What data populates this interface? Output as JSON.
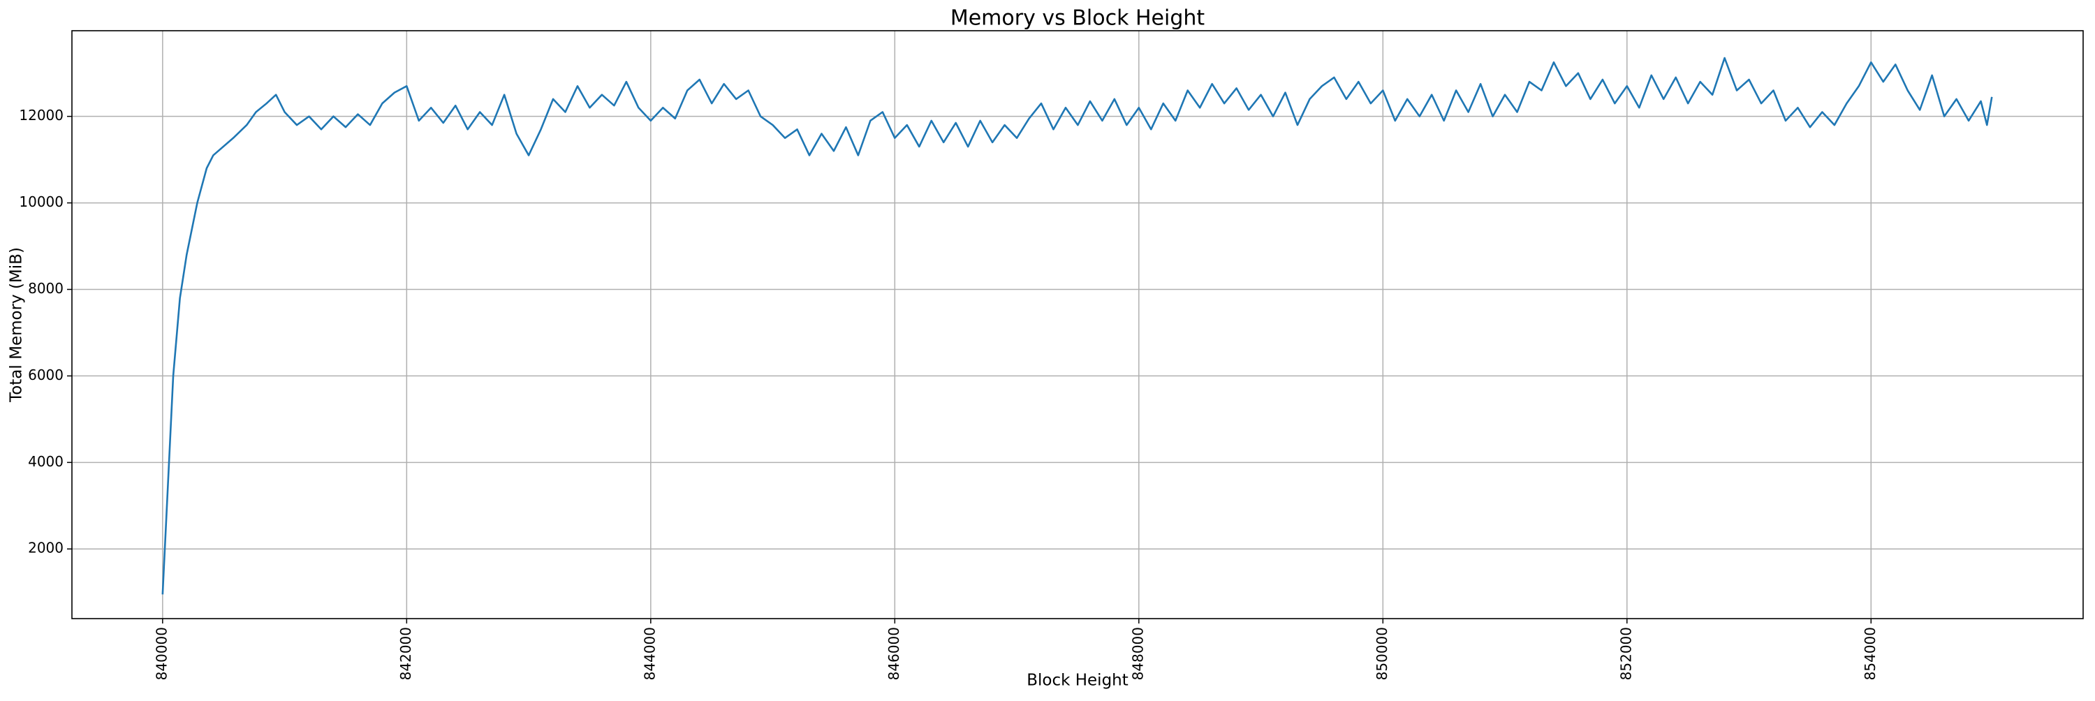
{
  "chart_data": {
    "type": "line",
    "title": "Memory vs Block Height",
    "x_label": "Block Height",
    "y_label": "Total Memory (MiB)",
    "x": [
      840000,
      840044,
      840087,
      840142,
      840197,
      840284,
      840361,
      840415,
      840579,
      840689,
      840765,
      840852,
      840929,
      841000,
      841100,
      841200,
      841300,
      841400,
      841500,
      841600,
      841700,
      841800,
      841900,
      842000,
      842100,
      842200,
      842300,
      842400,
      842500,
      842600,
      842700,
      842800,
      842900,
      843000,
      843100,
      843200,
      843300,
      843400,
      843500,
      843600,
      843700,
      843800,
      843900,
      844000,
      844100,
      844200,
      844300,
      844400,
      844500,
      844600,
      844700,
      844800,
      844900,
      845000,
      845100,
      845200,
      845300,
      845400,
      845500,
      845600,
      845700,
      845800,
      845900,
      846000,
      846100,
      846200,
      846300,
      846400,
      846500,
      846600,
      846700,
      846800,
      846900,
      847000,
      847100,
      847200,
      847300,
      847400,
      847500,
      847600,
      847700,
      847800,
      847900,
      848000,
      848100,
      848200,
      848300,
      848400,
      848500,
      848600,
      848700,
      848800,
      848900,
      849000,
      849100,
      849200,
      849300,
      849400,
      849500,
      849600,
      849700,
      849800,
      849900,
      850000,
      850100,
      850200,
      850300,
      850400,
      850500,
      850600,
      850700,
      850800,
      850900,
      851000,
      851100,
      851200,
      851300,
      851400,
      851500,
      851600,
      851700,
      851800,
      851900,
      852000,
      852100,
      852200,
      852300,
      852400,
      852500,
      852600,
      852700,
      852800,
      852900,
      853000,
      853100,
      853200,
      853300,
      853400,
      853500,
      853600,
      853700,
      853800,
      853900,
      854000,
      854100,
      854200,
      854300,
      854400,
      854500,
      854600,
      854700,
      854800,
      854900,
      854950,
      854990
    ],
    "series": [
      {
        "name": "Total Memory (MiB)",
        "color": "#1f77b4",
        "values": [
          950,
          3500,
          6000,
          7800,
          8800,
          10000,
          10800,
          11100,
          11500,
          11800,
          12100,
          12300,
          12500,
          12100,
          11800,
          12000,
          11700,
          12000,
          11750,
          12050,
          11800,
          12300,
          12550,
          12700,
          11900,
          12200,
          11850,
          12250,
          11700,
          12100,
          11800,
          12500,
          11600,
          11100,
          11700,
          12400,
          12100,
          12700,
          12200,
          12500,
          12250,
          12800,
          12200,
          11900,
          12200,
          11950,
          12600,
          12850,
          12300,
          12750,
          12400,
          12600,
          12000,
          11800,
          11500,
          11700,
          11100,
          11600,
          11200,
          11750,
          11100,
          11900,
          12100,
          11500,
          11800,
          11300,
          11900,
          11400,
          11850,
          11300,
          11900,
          11400,
          11800,
          11500,
          11950,
          12300,
          11700,
          12200,
          11800,
          12350,
          11900,
          12400,
          11800,
          12200,
          11700,
          12300,
          11900,
          12600,
          12200,
          12750,
          12300,
          12650,
          12150,
          12500,
          12000,
          12550,
          11800,
          12400,
          12700,
          12900,
          12400,
          12800,
          12300,
          12600,
          11900,
          12400,
          12000,
          12500,
          11900,
          12600,
          12100,
          12750,
          12000,
          12500,
          12100,
          12800,
          12600,
          13250,
          12700,
          13000,
          12400,
          12850,
          12300,
          12700,
          12200,
          12950,
          12400,
          12900,
          12300,
          12800,
          12500,
          13350,
          12600,
          12850,
          12300,
          12600,
          11900,
          12200,
          11750,
          12100,
          11800,
          12300,
          12700,
          13250,
          12800,
          13200,
          12600,
          12150,
          12950,
          12000,
          12400,
          11900,
          12350,
          11800,
          12450
        ]
      }
    ],
    "xlim": [
      839257,
      855738
    ],
    "ylim": [
      390,
      13980
    ],
    "xticks": [
      840000,
      842000,
      844000,
      846000,
      848000,
      850000,
      852000,
      854000
    ],
    "yticks": [
      2000,
      4000,
      6000,
      8000,
      10000,
      12000
    ],
    "grid": true
  }
}
